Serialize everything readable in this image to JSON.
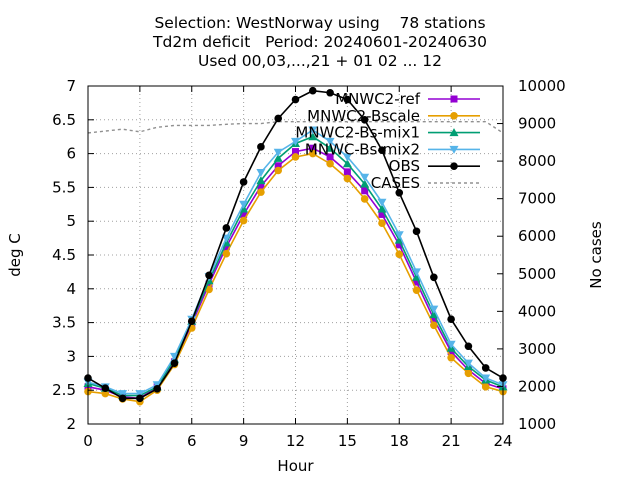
{
  "chart_data": {
    "type": "line",
    "title_lines": [
      "Selection: WestNorway using    78 stations",
      "Td2m deficit   Period: 20240601-20240630",
      "Used 00,03,...,21 + 01 02 ... 12"
    ],
    "xlabel": "Hour",
    "ylabel": "deg C",
    "y2label": "No cases",
    "xlim": [
      0,
      24
    ],
    "ylim": [
      2,
      7
    ],
    "y2lim": [
      1000,
      10000
    ],
    "xticks": [
      0,
      3,
      6,
      9,
      12,
      15,
      18,
      21,
      24
    ],
    "yticks": [
      2,
      2.5,
      3,
      3.5,
      4,
      4.5,
      5,
      5.5,
      6,
      6.5,
      7
    ],
    "y2ticks": [
      1000,
      2000,
      3000,
      4000,
      5000,
      6000,
      7000,
      8000,
      9000,
      10000
    ],
    "grid": true,
    "legend_position": "top-right",
    "x": [
      0,
      1,
      2,
      3,
      4,
      5,
      6,
      7,
      8,
      9,
      10,
      11,
      12,
      13,
      14,
      15,
      16,
      17,
      18,
      19,
      20,
      21,
      22,
      23,
      24
    ],
    "series": [
      {
        "name": "MNWC2-ref",
        "color": "#9400d3",
        "marker": "square",
        "axis": "y",
        "values": [
          2.55,
          2.5,
          2.4,
          2.38,
          2.55,
          2.92,
          3.48,
          4.07,
          4.62,
          5.1,
          5.52,
          5.82,
          6.03,
          6.08,
          5.95,
          5.73,
          5.45,
          5.1,
          4.65,
          4.1,
          3.55,
          3.07,
          2.8,
          2.6,
          2.52
        ]
      },
      {
        "name": "MNWC2-Bscale",
        "color": "#e69f00",
        "marker": "circle",
        "axis": "y",
        "values": [
          2.48,
          2.45,
          2.37,
          2.33,
          2.5,
          2.88,
          3.42,
          3.99,
          4.52,
          5.01,
          5.43,
          5.75,
          5.95,
          6.0,
          5.85,
          5.63,
          5.33,
          4.97,
          4.51,
          3.98,
          3.46,
          2.98,
          2.75,
          2.55,
          2.48
        ]
      },
      {
        "name": "MNWC2-Bs-mix1",
        "color": "#009e73",
        "marker": "triangle-up",
        "axis": "y",
        "values": [
          2.6,
          2.53,
          2.42,
          2.42,
          2.55,
          2.96,
          3.52,
          4.12,
          4.68,
          5.18,
          5.6,
          5.93,
          6.15,
          6.25,
          6.08,
          5.85,
          5.55,
          5.18,
          4.72,
          4.17,
          3.62,
          3.12,
          2.85,
          2.65,
          2.55
        ]
      },
      {
        "name": "MNWC-Bs-mix2",
        "color": "#56b4e9",
        "marker": "triangle-down",
        "axis": "y",
        "values": [
          2.62,
          2.55,
          2.45,
          2.45,
          2.58,
          3.0,
          3.55,
          4.18,
          4.75,
          5.25,
          5.72,
          6.02,
          6.18,
          6.35,
          6.18,
          5.95,
          5.65,
          5.28,
          4.8,
          4.25,
          3.7,
          3.18,
          2.9,
          2.68,
          2.58
        ]
      },
      {
        "name": "OBS",
        "color": "#000000",
        "marker": "circle",
        "axis": "y",
        "values": [
          2.68,
          2.53,
          2.38,
          2.38,
          2.52,
          2.9,
          3.52,
          4.2,
          4.9,
          5.58,
          6.1,
          6.52,
          6.8,
          6.93,
          6.9,
          6.8,
          6.5,
          6.05,
          5.42,
          4.85,
          4.17,
          3.55,
          3.15,
          2.83,
          2.68
        ]
      },
      {
        "name": "CASES",
        "color": "#909090",
        "marker": "none",
        "dashed": true,
        "axis": "y2",
        "values": [
          8750,
          8800,
          8850,
          8780,
          8900,
          8950,
          8950,
          8950,
          8980,
          9000,
          9000,
          9050,
          9050,
          9050,
          9050,
          9050,
          9050,
          9050,
          9050,
          9050,
          9050,
          9050,
          9050,
          9050,
          8750
        ]
      }
    ]
  }
}
